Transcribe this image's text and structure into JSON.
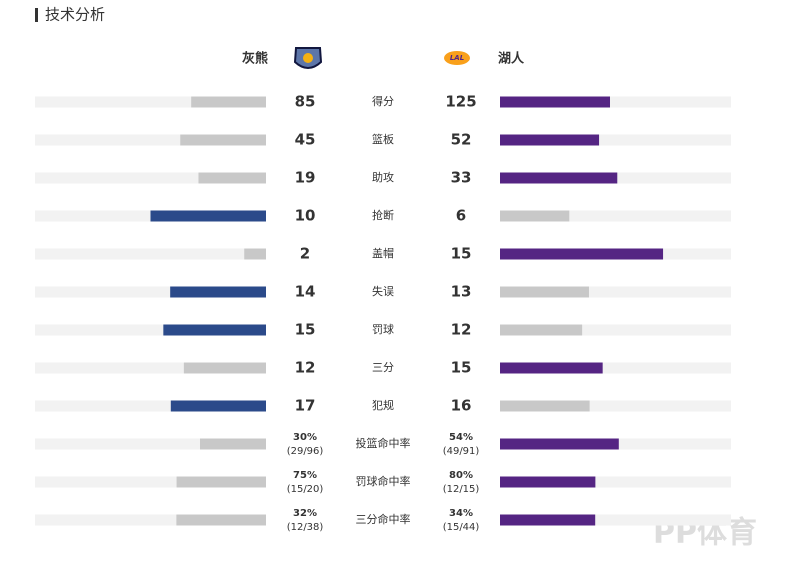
{
  "header": {
    "title": "技术分析"
  },
  "teams": {
    "home": {
      "name": "灰熊",
      "color": "#2b4a8a"
    },
    "away": {
      "name": "湖人",
      "color": "#552583"
    }
  },
  "stats": [
    {
      "label": "得分",
      "home": 85,
      "away": 125
    },
    {
      "label": "篮板",
      "home": 45,
      "away": 52
    },
    {
      "label": "助攻",
      "home": 19,
      "away": 33
    },
    {
      "label": "抢断",
      "home": 10,
      "away": 6
    },
    {
      "label": "盖帽",
      "home": 2,
      "away": 15
    },
    {
      "label": "失误",
      "home": 14,
      "away": 13
    },
    {
      "label": "罚球",
      "home": 15,
      "away": 12
    },
    {
      "label": "三分",
      "home": 12,
      "away": 15
    },
    {
      "label": "犯规",
      "home": 17,
      "away": 16
    },
    {
      "label": "投篮命中率",
      "home": 30,
      "home_label": "30%",
      "home_detail": "(29/96)",
      "away": 54,
      "away_label": "54%",
      "away_detail": "(49/91)"
    },
    {
      "label": "罚球命中率",
      "home": 75,
      "home_label": "75%",
      "home_detail": "(15/20)",
      "away": 80,
      "away_label": "80%",
      "away_detail": "(12/15)"
    },
    {
      "label": "三分命中率",
      "home": 32,
      "home_label": "32%",
      "home_detail": "(12/38)",
      "away": 34,
      "away_label": "34%",
      "away_detail": "(15/44)"
    }
  ],
  "watermark": "PP体育"
}
